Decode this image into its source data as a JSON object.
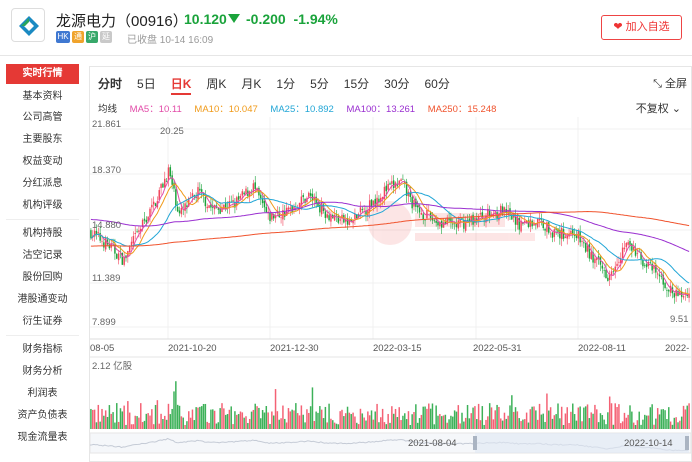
{
  "header": {
    "name": "龙源电力",
    "code": "（00916）",
    "price": "10.120",
    "change": "-0.200",
    "change_pct": "-1.94%",
    "badges": [
      "HK",
      "通",
      "沪",
      "延"
    ],
    "status": "已收盘 10-14 16:09",
    "fav_label": "加入自选",
    "price_color": "#1aa33b"
  },
  "sidebar": {
    "items": [
      "实时行情",
      "基本资料",
      "公司高管",
      "主要股东",
      "权益变动",
      "分红派息",
      "机构评级",
      "机构持股",
      "沽空记录",
      "股份回购",
      "港股通变动",
      "衍生证券",
      "财务指标",
      "财务分析",
      "利润表",
      "资产负债表",
      "现金流量表"
    ]
  },
  "tabs": [
    "分时",
    "5日",
    "日K",
    "周K",
    "月K",
    "1分",
    "5分",
    "15分",
    "30分",
    "60分"
  ],
  "active_tab": "日K",
  "fullscreen_label": "全屏",
  "adjust_label": "不复权",
  "ma": [
    {
      "label": "均线",
      "color": "#333333"
    },
    {
      "label": "MA5：10.11",
      "color": "#e24ba8"
    },
    {
      "label": "MA10：10.047",
      "color": "#f09a19"
    },
    {
      "label": "MA25：10.892",
      "color": "#22a6d6"
    },
    {
      "label": "MA100：13.261",
      "color": "#9a2fd0"
    },
    {
      "label": "MA250：15.248",
      "color": "#f0532d"
    }
  ],
  "chart_data": {
    "type": "candlestick",
    "y_axis_ticks": [
      "21.861",
      "18.370",
      "14.880",
      "11.389",
      "7.899"
    ],
    "x_axis_ticks": [
      "08-05",
      "2021-10-20",
      "2021-12-30",
      "2022-03-15",
      "2022-05-31",
      "2022-08-11",
      "2022-"
    ],
    "high_label": "20.25",
    "low_label": "9.51",
    "volume_label": "2.12 亿股",
    "navigator_start": "2021-08-04",
    "navigator_end": "2022-10-14",
    "up_color": "#f2455c",
    "down_color": "#1aa33b",
    "ylim": [
      7.899,
      21.861
    ]
  }
}
